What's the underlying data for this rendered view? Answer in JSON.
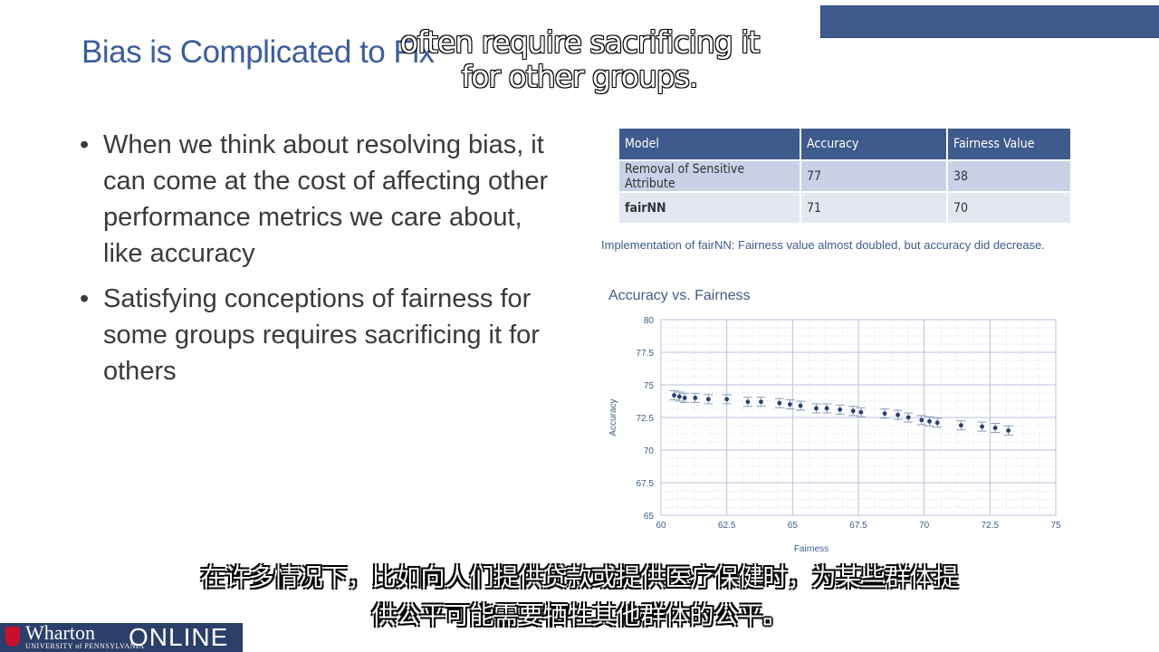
{
  "slide": {
    "title": "Bias is Complicated to Fix",
    "bullets": [
      "When we think about resolving bias, it can come at the cost of affecting other performance metrics we care about, like accuracy",
      "Satisfying conceptions of fairness for some groups requires sacrificing it for others"
    ],
    "bullet_glyph": "•"
  },
  "table": {
    "headers": [
      "Model",
      "Accuracy",
      "Fairness Value"
    ],
    "rows": [
      [
        "Removal of Sensitive Attribute",
        "77",
        "38"
      ],
      [
        "fairNN",
        "71",
        "70"
      ]
    ],
    "caption": "Implementation of fairNN: Fairness value almost doubled, but accuracy did decrease."
  },
  "subtitles": {
    "english": "often require sacrificing it for other groups.",
    "chinese_line1": "在许多情况下，比如向人们提供贷款或提供医疗保健时，为某些群体提",
    "chinese_line2": "供公平可能需要牺牲其他群体的公平。"
  },
  "branding": {
    "wharton": "Wharton",
    "upenn": "UNIVERSITY of PENNSYLVANIA",
    "online": "ONLINE"
  },
  "colors": {
    "accent": "#3f5a8c",
    "title": "#3d5d9b",
    "table_row_1": "#c9d1e6",
    "table_row_2": "#e3e7f2",
    "logo_red": "#c8102e"
  },
  "chart_data": {
    "type": "scatter",
    "title": "Accuracy vs. Fairness",
    "xlabel": "Fairness",
    "ylabel": "Accuracy",
    "xlim": [
      60,
      75
    ],
    "ylim": [
      65,
      80
    ],
    "xticks": [
      "60",
      "62.5",
      "65",
      "67.5",
      "70",
      "72.5",
      "75"
    ],
    "yticks": [
      "80",
      "77.5",
      "75",
      "72.5",
      "70",
      "67.5",
      "65"
    ],
    "grid": true,
    "points": [
      {
        "x": 60.5,
        "y": 74.2
      },
      {
        "x": 60.7,
        "y": 74.1
      },
      {
        "x": 60.9,
        "y": 74.0
      },
      {
        "x": 61.3,
        "y": 74.0
      },
      {
        "x": 61.8,
        "y": 73.9
      },
      {
        "x": 62.5,
        "y": 73.9
      },
      {
        "x": 63.3,
        "y": 73.7
      },
      {
        "x": 63.8,
        "y": 73.7
      },
      {
        "x": 64.5,
        "y": 73.6
      },
      {
        "x": 64.9,
        "y": 73.5
      },
      {
        "x": 65.3,
        "y": 73.4
      },
      {
        "x": 65.9,
        "y": 73.2
      },
      {
        "x": 66.3,
        "y": 73.2
      },
      {
        "x": 66.8,
        "y": 73.1
      },
      {
        "x": 67.3,
        "y": 73.0
      },
      {
        "x": 67.6,
        "y": 72.9
      },
      {
        "x": 68.5,
        "y": 72.8
      },
      {
        "x": 69.0,
        "y": 72.7
      },
      {
        "x": 69.4,
        "y": 72.5
      },
      {
        "x": 69.9,
        "y": 72.3
      },
      {
        "x": 70.2,
        "y": 72.2
      },
      {
        "x": 70.5,
        "y": 72.1
      },
      {
        "x": 71.4,
        "y": 71.9
      },
      {
        "x": 72.2,
        "y": 71.8
      },
      {
        "x": 72.7,
        "y": 71.7
      },
      {
        "x": 73.2,
        "y": 71.5
      }
    ],
    "error_bar": 0.35
  }
}
